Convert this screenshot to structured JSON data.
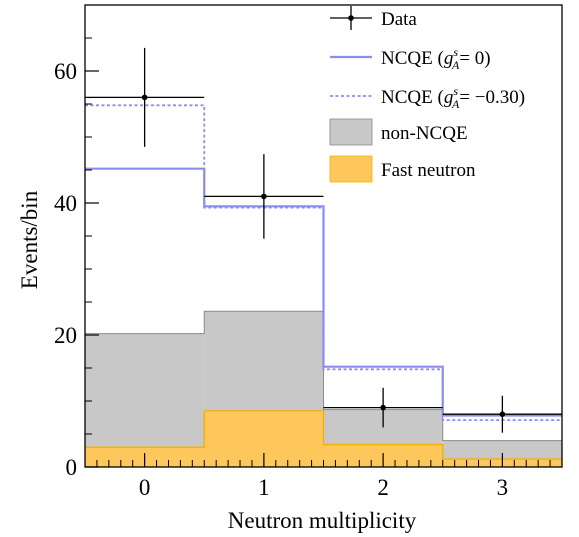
{
  "chart_data": {
    "type": "histogram",
    "x_categories": [
      "0",
      "1",
      "2",
      "3"
    ],
    "xlabel": "Neutron multiplicity",
    "ylabel": "Events/bin",
    "xlim": [
      -0.5,
      3.5
    ],
    "ylim": [
      0,
      70
    ],
    "y_ticks": [
      0,
      20,
      40,
      60
    ],
    "y_tick_labels": [
      "0",
      "20",
      "40",
      "60"
    ],
    "x_ticks": [
      0,
      1,
      2,
      3
    ],
    "x_tick_labels": [
      "0",
      "1",
      "2",
      "3"
    ],
    "bin_edges": [
      -0.5,
      0.5,
      1.5,
      2.5,
      3.5
    ],
    "data": {
      "name": "Data",
      "x": [
        0,
        1,
        2,
        3
      ],
      "y": [
        56,
        41,
        9,
        8
      ],
      "yerr_low": [
        7.5,
        6.4,
        3.0,
        2.8
      ],
      "yerr_high": [
        7.5,
        6.4,
        3.0,
        2.8
      ]
    },
    "series": [
      {
        "name": "NCQE (g_A^s = 0)",
        "style": "solid-line",
        "color": "#8c8cf0",
        "values": [
          45.2,
          39.5,
          15.2,
          7.8
        ]
      },
      {
        "name": "NCQE (g_A^s = -0.30)",
        "style": "dashed-line",
        "color": "#8c8cf0",
        "values": [
          54.8,
          39.3,
          14.8,
          7.1
        ]
      },
      {
        "name": "non-NCQE",
        "style": "filled",
        "color": "#c8c8c8",
        "values": [
          20.2,
          23.6,
          8.7,
          4.0
        ]
      },
      {
        "name": "Fast neutron",
        "style": "filled",
        "color": "#fdc75c",
        "values": [
          3.0,
          8.5,
          3.4,
          1.2
        ]
      }
    ],
    "legend": {
      "placement": "top-right",
      "entries": [
        {
          "key": "data",
          "text": "Data"
        },
        {
          "key": "ncqe0",
          "prefix": "NCQE (",
          "g": "g",
          "sup": "s",
          "sub": "A",
          "suffix": "= 0)"
        },
        {
          "key": "ncqe30",
          "prefix": "NCQE (",
          "g": "g",
          "sup": "s",
          "sub": "A",
          "suffix": "= −0.30)"
        },
        {
          "key": "nonncqe",
          "text": "non-NCQE"
        },
        {
          "key": "fastn",
          "text": "Fast neutron"
        }
      ]
    },
    "colors": {
      "data": "#000000",
      "ncqe": "#8c8cf0",
      "nonncqe_fill": "#c8c8c8",
      "nonncqe_edge": "#8a8a8a",
      "fast_fill": "#fdc75c",
      "fast_edge": "#f5b000"
    }
  }
}
